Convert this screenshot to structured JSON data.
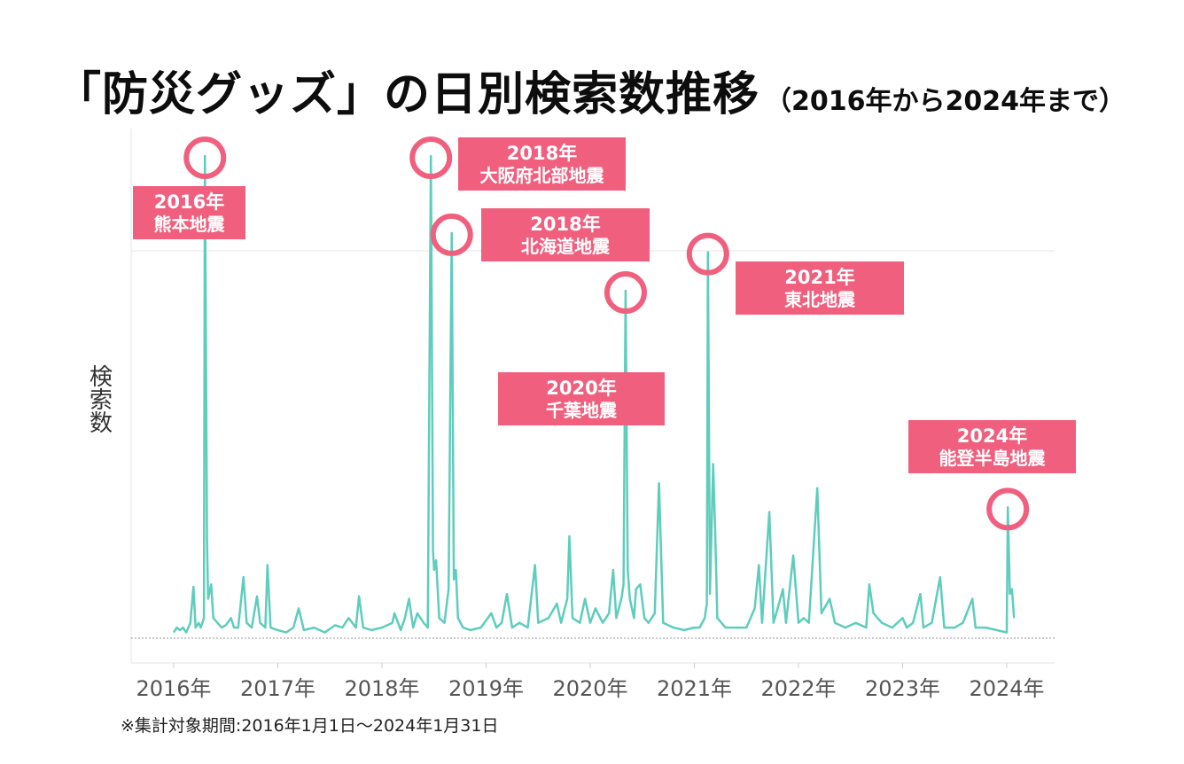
{
  "title": {
    "main": "「防災グッズ」の日別検索数推移",
    "sub": "（2016年から2024年まで）"
  },
  "footnote": "※集計対象期間:2016年1月1日～2024年1月31日",
  "colors": {
    "line": "#5ecdbc",
    "annotation": "#f0607e",
    "grid": "#e6e6e6",
    "baseline": "#999999"
  },
  "chart_data": {
    "type": "line",
    "title": "「防災グッズ」の日別検索数推移",
    "subtitle": "（2016年から2024年まで）",
    "xlabel": "",
    "ylabel": "検索数",
    "x_ticks": [
      "2016年",
      "2017年",
      "2018年",
      "2019年",
      "2020年",
      "2021年",
      "2022年",
      "2023年",
      "2024年"
    ],
    "x_range": [
      2016.0,
      2024.08
    ],
    "ylim": [
      0,
      100
    ],
    "grid": "horizontal",
    "series": [
      {
        "values": [
          [
            2016.0,
            1
          ],
          [
            2016.03,
            2
          ],
          [
            2016.06,
            1.5
          ],
          [
            2016.09,
            2
          ],
          [
            2016.12,
            1
          ],
          [
            2016.16,
            3
          ],
          [
            2016.19,
            10.5
          ],
          [
            2016.21,
            2
          ],
          [
            2016.24,
            3
          ],
          [
            2016.26,
            2
          ],
          [
            2016.29,
            4
          ],
          [
            2016.3,
            100
          ],
          [
            2016.32,
            20
          ],
          [
            2016.33,
            8
          ],
          [
            2016.36,
            11
          ],
          [
            2016.38,
            4
          ],
          [
            2016.42,
            3
          ],
          [
            2016.46,
            2
          ],
          [
            2016.5,
            2.5
          ],
          [
            2016.55,
            4
          ],
          [
            2016.58,
            2
          ],
          [
            2016.62,
            2
          ],
          [
            2016.67,
            12.5
          ],
          [
            2016.7,
            3
          ],
          [
            2016.75,
            2
          ],
          [
            2016.8,
            8.5
          ],
          [
            2016.83,
            3
          ],
          [
            2016.88,
            2
          ],
          [
            2016.9,
            15
          ],
          [
            2016.93,
            2
          ],
          [
            2017.0,
            1.5
          ],
          [
            2017.08,
            1
          ],
          [
            2017.15,
            2
          ],
          [
            2017.2,
            6
          ],
          [
            2017.25,
            1.5
          ],
          [
            2017.35,
            2
          ],
          [
            2017.45,
            1
          ],
          [
            2017.55,
            2.5
          ],
          [
            2017.62,
            2
          ],
          [
            2017.68,
            4
          ],
          [
            2017.75,
            2
          ],
          [
            2017.78,
            8.5
          ],
          [
            2017.82,
            2
          ],
          [
            2017.9,
            1.5
          ],
          [
            2018.0,
            2
          ],
          [
            2018.1,
            3
          ],
          [
            2018.12,
            5
          ],
          [
            2018.18,
            1.5
          ],
          [
            2018.22,
            4
          ],
          [
            2018.26,
            8
          ],
          [
            2018.3,
            2
          ],
          [
            2018.34,
            5
          ],
          [
            2018.4,
            3
          ],
          [
            2018.44,
            2
          ],
          [
            2018.47,
            100
          ],
          [
            2018.49,
            18
          ],
          [
            2018.5,
            14
          ],
          [
            2018.52,
            16
          ],
          [
            2018.55,
            4
          ],
          [
            2018.6,
            3
          ],
          [
            2018.64,
            10
          ],
          [
            2018.67,
            84
          ],
          [
            2018.69,
            12
          ],
          [
            2018.71,
            14
          ],
          [
            2018.73,
            4
          ],
          [
            2018.78,
            2
          ],
          [
            2018.85,
            1.5
          ],
          [
            2018.95,
            2
          ],
          [
            2019.05,
            5
          ],
          [
            2019.1,
            2
          ],
          [
            2019.15,
            3
          ],
          [
            2019.2,
            9
          ],
          [
            2019.25,
            2
          ],
          [
            2019.32,
            3
          ],
          [
            2019.4,
            2
          ],
          [
            2019.47,
            15
          ],
          [
            2019.5,
            3
          ],
          [
            2019.6,
            4
          ],
          [
            2019.68,
            7
          ],
          [
            2019.72,
            3
          ],
          [
            2019.78,
            8
          ],
          [
            2019.8,
            21
          ],
          [
            2019.83,
            4
          ],
          [
            2019.9,
            3
          ],
          [
            2019.95,
            8
          ],
          [
            2020.0,
            3
          ],
          [
            2020.05,
            6
          ],
          [
            2020.12,
            3
          ],
          [
            2020.18,
            5
          ],
          [
            2020.22,
            14
          ],
          [
            2020.25,
            4
          ],
          [
            2020.3,
            8
          ],
          [
            2020.32,
            11
          ],
          [
            2020.34,
            72
          ],
          [
            2020.36,
            14
          ],
          [
            2020.38,
            8
          ],
          [
            2020.42,
            4
          ],
          [
            2020.44,
            10
          ],
          [
            2020.48,
            11
          ],
          [
            2020.52,
            4
          ],
          [
            2020.56,
            3
          ],
          [
            2020.62,
            5
          ],
          [
            2020.66,
            32
          ],
          [
            2020.7,
            3
          ],
          [
            2020.8,
            2
          ],
          [
            2020.9,
            1.5
          ],
          [
            2021.0,
            2
          ],
          [
            2021.05,
            2
          ],
          [
            2021.1,
            4
          ],
          [
            2021.12,
            7
          ],
          [
            2021.13,
            80
          ],
          [
            2021.15,
            9
          ],
          [
            2021.18,
            36
          ],
          [
            2021.2,
            22
          ],
          [
            2021.22,
            4
          ],
          [
            2021.3,
            2
          ],
          [
            2021.4,
            2
          ],
          [
            2021.5,
            2
          ],
          [
            2021.58,
            6
          ],
          [
            2021.62,
            15
          ],
          [
            2021.65,
            3
          ],
          [
            2021.72,
            26
          ],
          [
            2021.76,
            3
          ],
          [
            2021.8,
            6
          ],
          [
            2021.85,
            10
          ],
          [
            2021.88,
            3
          ],
          [
            2021.95,
            17
          ],
          [
            2022.0,
            3
          ],
          [
            2022.05,
            4
          ],
          [
            2022.1,
            3
          ],
          [
            2022.18,
            31
          ],
          [
            2022.22,
            5
          ],
          [
            2022.3,
            8
          ],
          [
            2022.35,
            3
          ],
          [
            2022.45,
            2
          ],
          [
            2022.55,
            3
          ],
          [
            2022.65,
            2
          ],
          [
            2022.68,
            11
          ],
          [
            2022.72,
            5
          ],
          [
            2022.8,
            3
          ],
          [
            2022.9,
            2
          ],
          [
            2023.0,
            4
          ],
          [
            2023.04,
            2
          ],
          [
            2023.1,
            3
          ],
          [
            2023.17,
            9
          ],
          [
            2023.2,
            2
          ],
          [
            2023.28,
            3
          ],
          [
            2023.36,
            12.5
          ],
          [
            2023.4,
            2
          ],
          [
            2023.5,
            2
          ],
          [
            2023.58,
            3
          ],
          [
            2023.67,
            8
          ],
          [
            2023.7,
            2
          ],
          [
            2023.8,
            2
          ],
          [
            2023.9,
            1.5
          ],
          [
            2024.0,
            1
          ],
          [
            2024.01,
            27
          ],
          [
            2024.03,
            9
          ],
          [
            2024.05,
            10
          ],
          [
            2024.07,
            4
          ]
        ]
      }
    ],
    "annotations": [
      {
        "year": "2016年",
        "label": "熊本地震",
        "x": 2016.3,
        "y": 100
      },
      {
        "year": "2018年",
        "label": "大阪府北部地震",
        "x": 2018.47,
        "y": 100
      },
      {
        "year": "2018年",
        "label": "北海道地震",
        "x": 2018.67,
        "y": 84
      },
      {
        "year": "2020年",
        "label": "千葉地震",
        "x": 2020.34,
        "y": 72
      },
      {
        "year": "2021年",
        "label": "東北地震",
        "x": 2021.13,
        "y": 80
      },
      {
        "year": "2024年",
        "label": "能登半島地震",
        "x": 2024.01,
        "y": 27
      }
    ]
  }
}
